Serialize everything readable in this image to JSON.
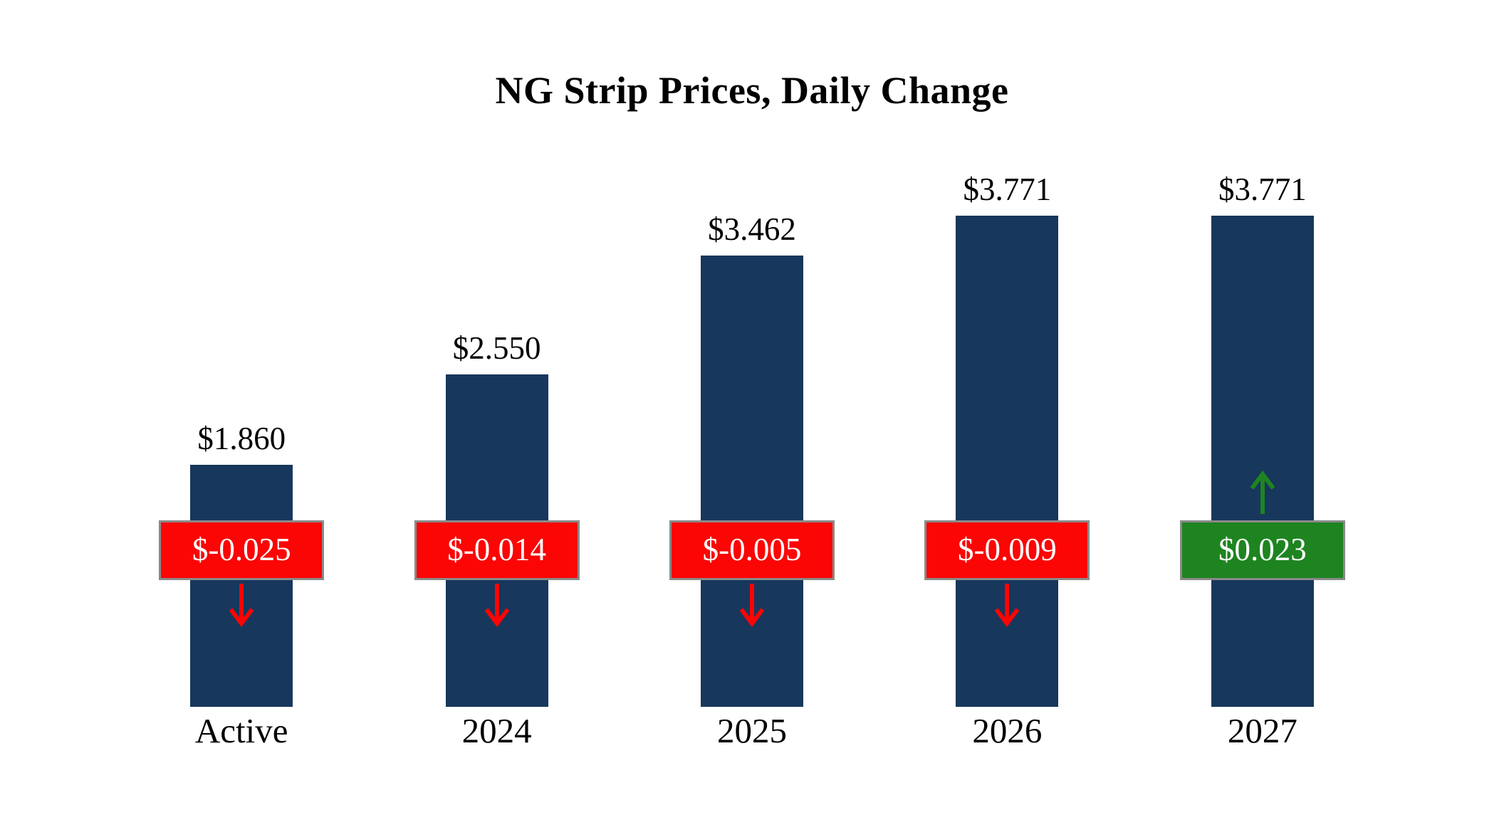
{
  "chart_data": {
    "type": "bar",
    "title": "NG Strip Prices, Daily Change",
    "categories": [
      "Active",
      "2024",
      "2025",
      "2026",
      "2027"
    ],
    "values": [
      1.86,
      2.55,
      3.462,
      3.771,
      3.771
    ],
    "value_labels": [
      "$1.860",
      "$2.550",
      "$3.462",
      "$3.771",
      "$3.771"
    ],
    "changes": [
      -0.025,
      -0.014,
      -0.005,
      -0.009,
      0.023
    ],
    "change_labels": [
      "$-0.025",
      "$-0.014",
      "$-0.005",
      "$-0.009",
      "$0.023"
    ],
    "change_directions": [
      "down",
      "down",
      "down",
      "down",
      "up"
    ],
    "xlabel": "",
    "ylabel": "",
    "ylim": [
      0,
      4.2
    ],
    "grid": false,
    "legend": false,
    "colors": {
      "bar": "#17375D",
      "negative": "#FB0505",
      "positive": "#1E8420",
      "badge_border": "#8A8A8A",
      "badge_text": "#FFFFFF",
      "background": "#FFFFFF",
      "text": "#000000"
    }
  }
}
